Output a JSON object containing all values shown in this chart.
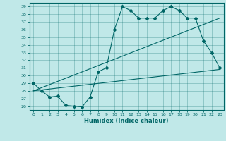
{
  "xlabel": "Humidex (Indice chaleur)",
  "bg_color": "#c0e8e8",
  "line_color": "#006666",
  "xlim": [
    -0.5,
    23.5
  ],
  "ylim": [
    25.5,
    39.5
  ],
  "yticks": [
    26,
    27,
    28,
    29,
    30,
    31,
    32,
    33,
    34,
    35,
    36,
    37,
    38,
    39
  ],
  "xticks": [
    0,
    1,
    2,
    3,
    4,
    5,
    6,
    7,
    8,
    9,
    10,
    11,
    12,
    13,
    14,
    15,
    16,
    17,
    18,
    19,
    20,
    21,
    22,
    23
  ],
  "line1_x": [
    0,
    1,
    2,
    3,
    4,
    5,
    6,
    7,
    8,
    9,
    10,
    11,
    12,
    13,
    14,
    15,
    16,
    17,
    18,
    19,
    20,
    21,
    22,
    23
  ],
  "line1_y": [
    29,
    28,
    27.2,
    27.3,
    26.1,
    26.0,
    25.9,
    27.2,
    30.5,
    31.0,
    36.0,
    39.0,
    38.5,
    37.5,
    37.5,
    37.5,
    38.5,
    39.0,
    38.5,
    37.5,
    37.5,
    34.5,
    33.0,
    31.0
  ],
  "line2_x": [
    0,
    23
  ],
  "line2_y": [
    28.0,
    30.8
  ],
  "line3_x": [
    0,
    23
  ],
  "line3_y": [
    28.0,
    37.5
  ]
}
